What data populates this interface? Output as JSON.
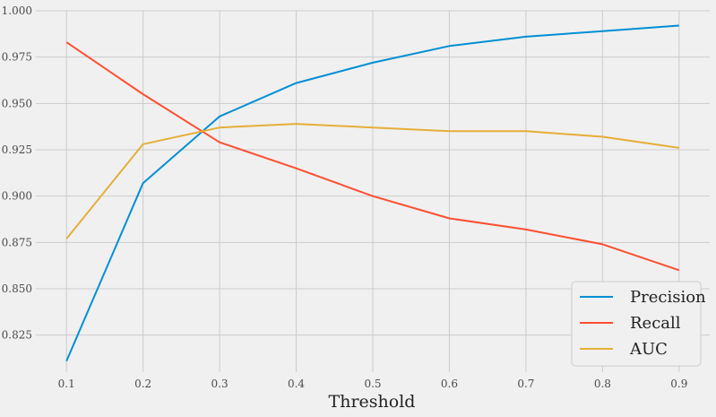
{
  "chart_data": {
    "type": "line",
    "title": "",
    "xlabel": "Threshold",
    "ylabel": "",
    "x": [
      0.1,
      0.2,
      0.3,
      0.4,
      0.5,
      0.6,
      0.7,
      0.8,
      0.9
    ],
    "xticks": [
      "0.1",
      "0.2",
      "0.3",
      "0.4",
      "0.5",
      "0.6",
      "0.7",
      "0.8",
      "0.9"
    ],
    "xlim": [
      0.06,
      0.94
    ],
    "ylim": [
      0.805,
      1.0
    ],
    "yticks": [
      "0.825",
      "0.850",
      "0.875",
      "0.900",
      "0.925",
      "0.950",
      "0.975",
      "1.000"
    ],
    "grid": true,
    "legend_position": "bottom-right",
    "series": [
      {
        "name": "Precision",
        "color": "#008fd5",
        "values": [
          0.811,
          0.907,
          0.943,
          0.961,
          0.972,
          0.981,
          0.986,
          0.989,
          0.992
        ]
      },
      {
        "name": "Recall",
        "color": "#fc4f30",
        "values": [
          0.983,
          0.955,
          0.929,
          0.915,
          0.9,
          0.888,
          0.882,
          0.874,
          0.86
        ]
      },
      {
        "name": "AUC",
        "color": "#e5ae38",
        "values": [
          0.877,
          0.928,
          0.937,
          0.939,
          0.937,
          0.935,
          0.935,
          0.932,
          0.926
        ]
      }
    ]
  }
}
